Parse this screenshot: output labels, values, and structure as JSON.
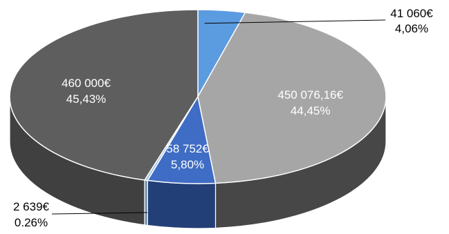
{
  "chart_data": {
    "type": "pie",
    "style": "3d-tilted",
    "title": "",
    "slices": [
      {
        "value_label": "41 060€",
        "percent_label": "4,06%",
        "value": 41060,
        "percent": 4.06,
        "color": "#5B9BE0",
        "side_color": "#3B73B4",
        "label_position": "outside-top-right"
      },
      {
        "value_label": "450 076,16€",
        "percent_label": "44,45%",
        "value": 450076.16,
        "percent": 44.45,
        "color": "#A6A6A6",
        "side_color": "#474747",
        "label_position": "inside"
      },
      {
        "value_label": "58 752€",
        "percent_label": "5,80%",
        "value": 58752,
        "percent": 5.8,
        "color": "#3F6CC4",
        "side_color": "#233F77",
        "label_position": "inside"
      },
      {
        "value_label": "2 639€",
        "percent_label": "0.26%",
        "value": 2639,
        "percent": 0.26,
        "color": "#9DC3E6",
        "side_color": "#6C8FB0",
        "label_position": "outside-bottom-left"
      },
      {
        "value_label": "460 000€",
        "percent_label": "45,43%",
        "value": 460000,
        "percent": 45.43,
        "color": "#5E5E5E",
        "side_color": "#404040",
        "label_position": "inside"
      }
    ]
  }
}
